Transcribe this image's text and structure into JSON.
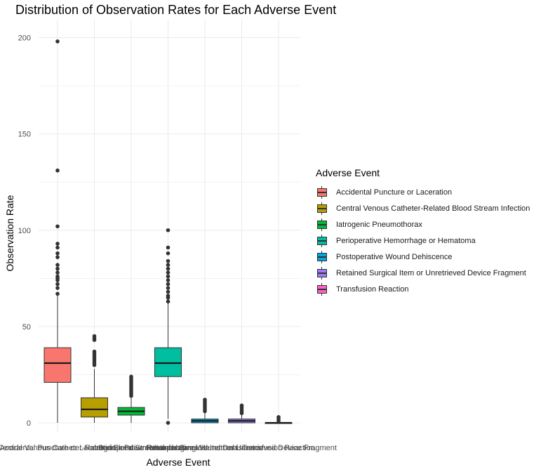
{
  "chart_data": {
    "type": "box",
    "title": "Distribution of Observation Rates for Each Adverse Event",
    "xlabel": "Adverse Event",
    "ylabel": "Observation Rate",
    "ylim": [
      -7,
      205
    ],
    "yticks": [
      0,
      50,
      100,
      150,
      200
    ],
    "grid": true,
    "legend": {
      "title": "Adverse Event",
      "position": "right"
    },
    "categories": [
      "Accidental Puncture or Laceration",
      "Central Venous Catheter-Related Blood Stream Infection",
      "Iatrogenic Pneumothorax",
      "Perioperative Hemorrhage or Hematoma",
      "Postoperative Wound Dehiscence",
      "Retained Surgical Item or Unretrieved Device Fragment",
      "Transfusion Reaction"
    ],
    "colors": [
      "#F8766D",
      "#B79F00",
      "#00BA38",
      "#00BFA0",
      "#00A5E3",
      "#9B7CF7",
      "#FF61C3"
    ],
    "boxes": [
      {
        "min": 0,
        "q1": 21,
        "median": 31,
        "q3": 39,
        "max": 66,
        "outliers": [
          67,
          70,
          72,
          74,
          75,
          76,
          78,
          80,
          82,
          86,
          88,
          91,
          93,
          102,
          131,
          198
        ]
      },
      {
        "min": 0,
        "q1": 3,
        "median": 7,
        "q3": 13,
        "max": 28,
        "outliers": [
          30,
          31,
          32,
          33,
          34,
          35,
          36,
          37,
          43,
          44,
          45
        ]
      },
      {
        "min": 0,
        "q1": 4,
        "median": 6,
        "q3": 8,
        "max": 13,
        "outliers": [
          14,
          15,
          16,
          17,
          18,
          19,
          20,
          21,
          22,
          23,
          24
        ]
      },
      {
        "min": 2,
        "q1": 24,
        "median": 31,
        "q3": 39,
        "max": 62,
        "outliers": [
          0,
          63,
          65,
          66,
          68,
          70,
          72,
          74,
          76,
          78,
          80,
          82,
          84,
          88,
          91,
          100
        ]
      },
      {
        "min": 0,
        "q1": 0,
        "median": 1,
        "q3": 2,
        "max": 5,
        "outliers": [
          6,
          7,
          8,
          9,
          10,
          11,
          12
        ]
      },
      {
        "min": 0,
        "q1": 0,
        "median": 1,
        "q3": 2,
        "max": 4,
        "outliers": [
          5,
          6,
          7,
          8,
          9
        ]
      },
      {
        "min": 0,
        "q1": 0,
        "median": 0,
        "q3": 0,
        "max": 0,
        "outliers": [
          1,
          2,
          3
        ]
      }
    ]
  }
}
